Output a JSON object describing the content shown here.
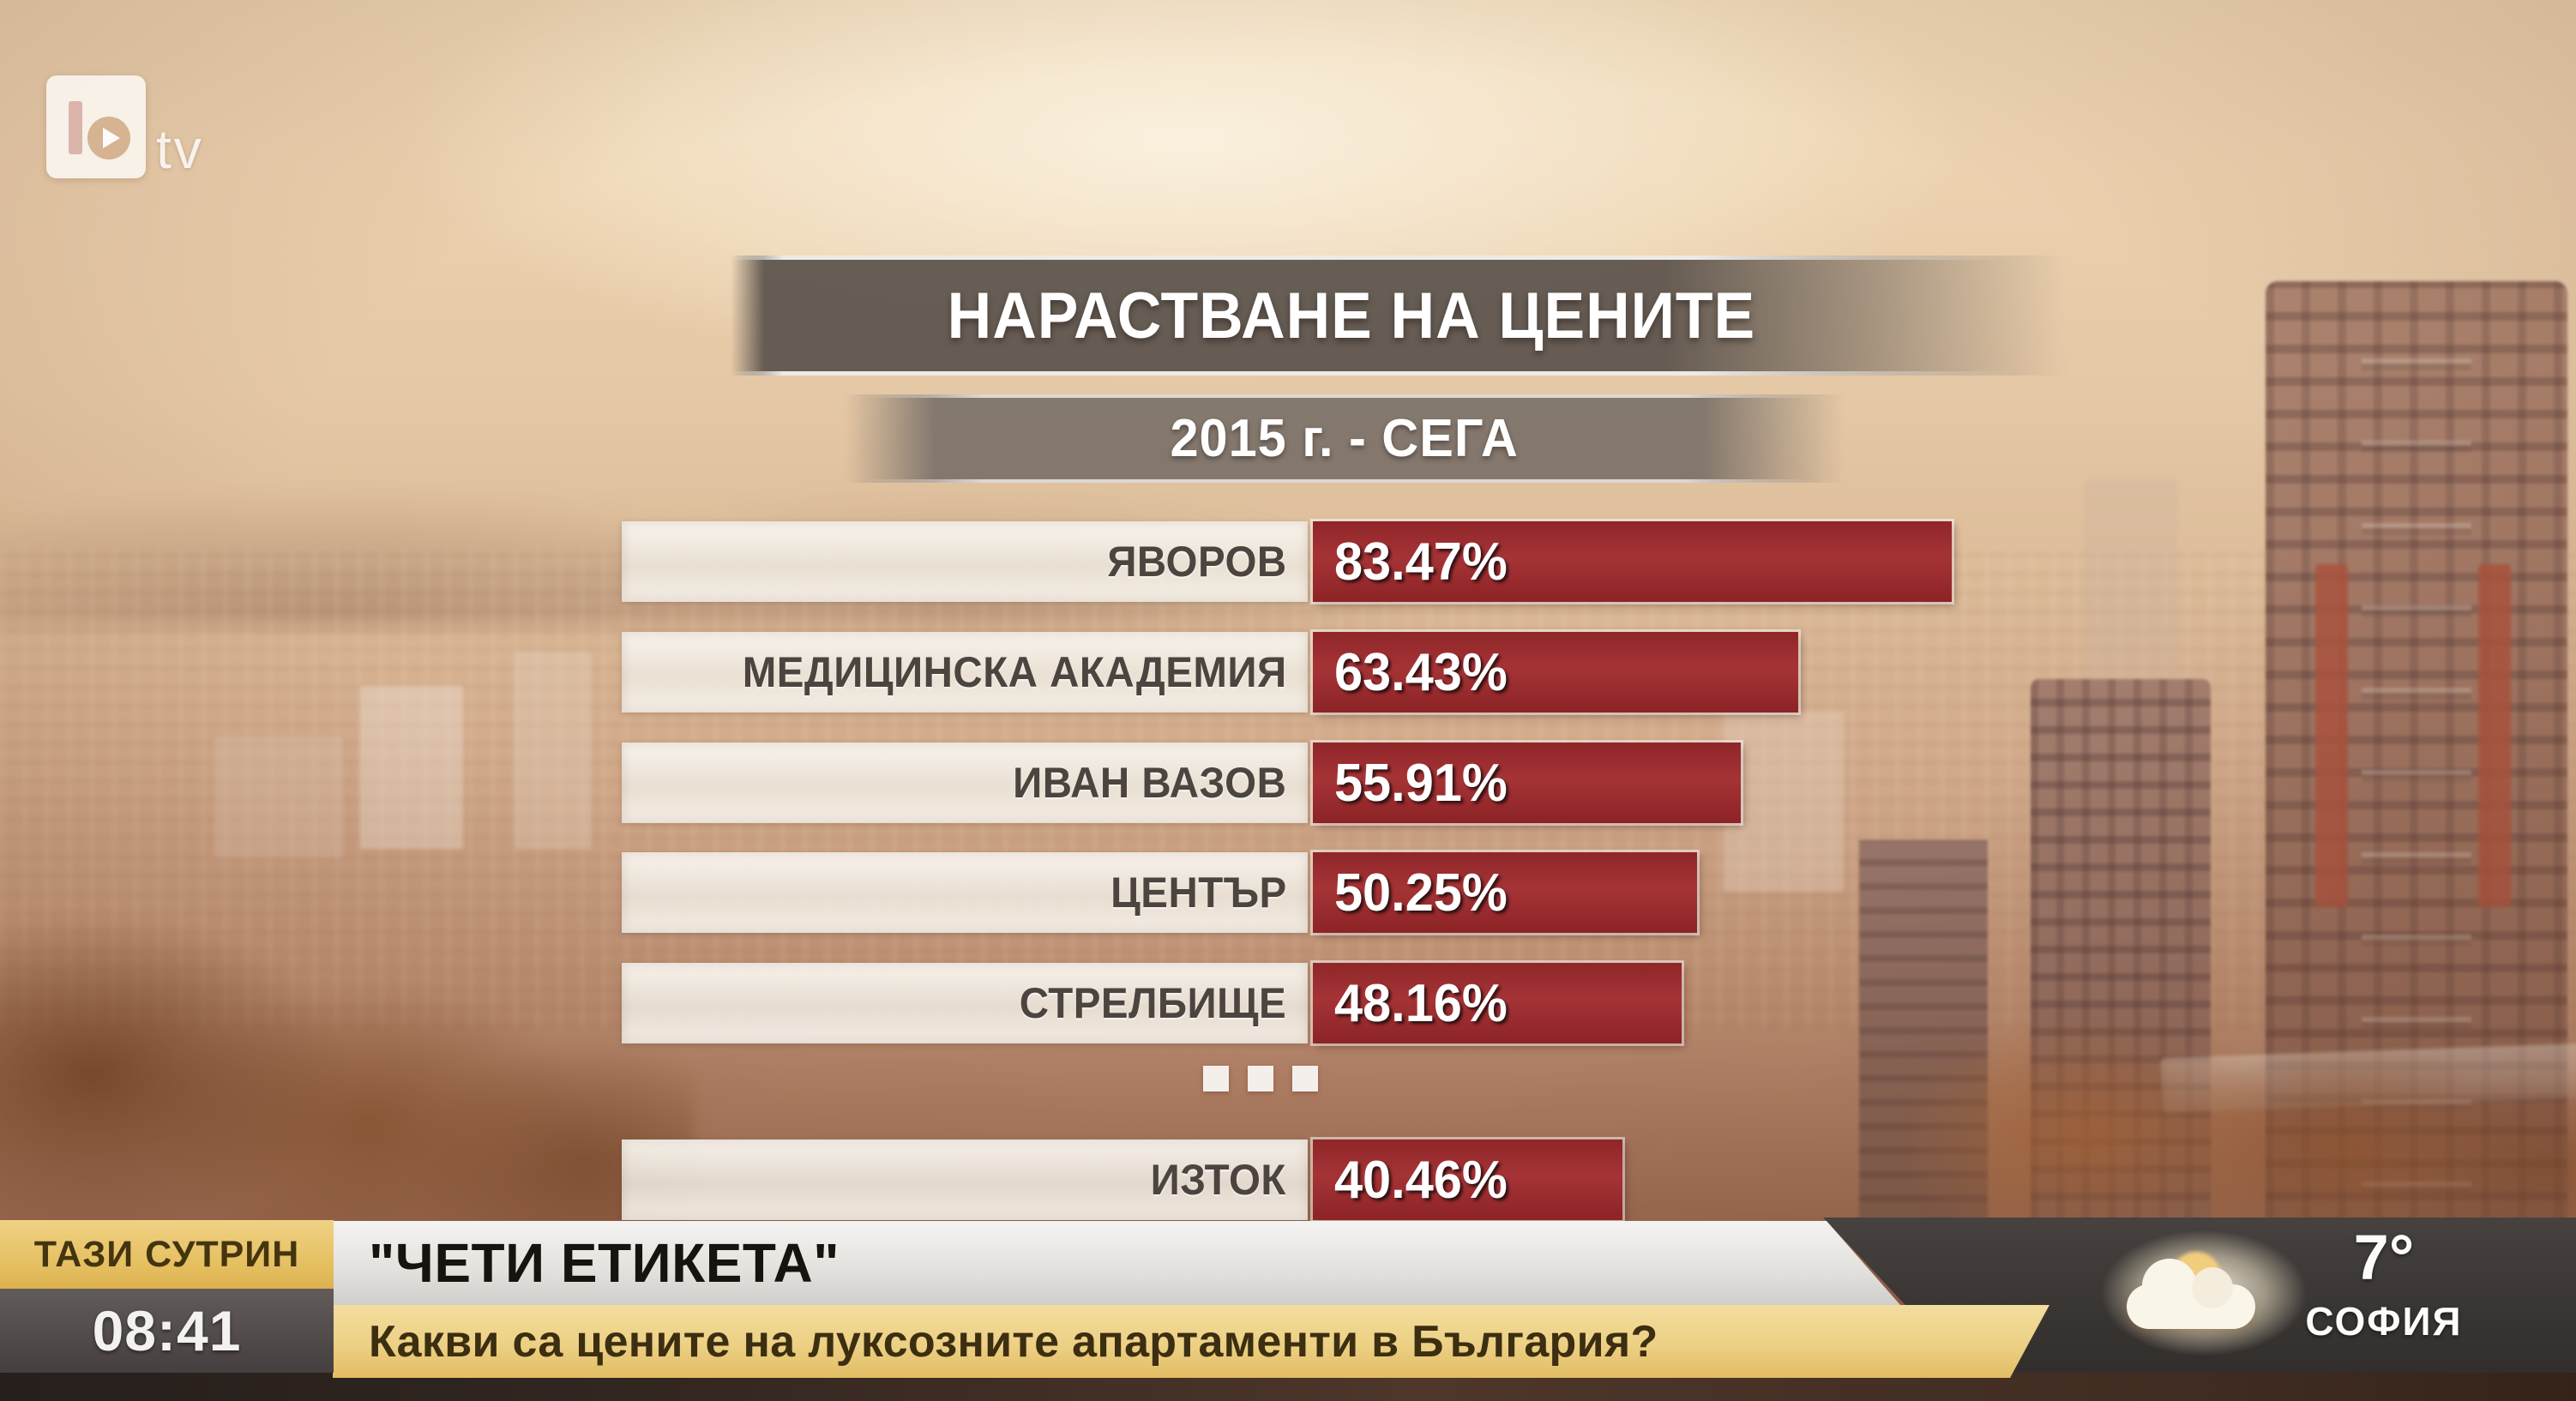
{
  "channel": {
    "logo_b": "",
    "logo_tv": "tv"
  },
  "chart_data": {
    "type": "bar",
    "orientation": "horizontal",
    "title": "НАРАСТВАНЕ НА ЦЕНИТЕ",
    "subtitle": "2015 г. - СЕГА",
    "unit": "%",
    "categories": [
      "ЯВОРОВ",
      "МЕДИЦИНСКА АКАДЕМИЯ",
      "ИВАН ВАЗОВ",
      "ЦЕНТЪР",
      "СТРЕЛБИЩЕ",
      "ИЗТОК"
    ],
    "values": [
      83.47,
      63.43,
      55.91,
      50.25,
      48.16,
      40.46
    ],
    "value_labels": [
      "83.47%",
      "63.43%",
      "55.91%",
      "50.25%",
      "48.16%",
      "40.46%"
    ],
    "list_truncated_before_last": true,
    "bar_color": "#9e2b2e",
    "label_panel_color": "#f1ece2",
    "xlim": [
      0,
      90
    ]
  },
  "ticker": {
    "show_label": "ТАЗИ СУТРИН",
    "time": "08:41",
    "headline": "\"ЧЕТИ ЕТИКЕТА\"",
    "subheadline": "Какви са цените на луксозните апартаменти в България?",
    "weather": {
      "temp": "7°",
      "city": "СОФИЯ",
      "icon": "sun-behind-cloud"
    }
  },
  "colors": {
    "accent_red": "#9e2b2e",
    "ticker_yellow": "#e9c66a",
    "ticker_gray": "#524c4a",
    "plate_gray": "#615850",
    "weather_panel": "#3a3634"
  }
}
